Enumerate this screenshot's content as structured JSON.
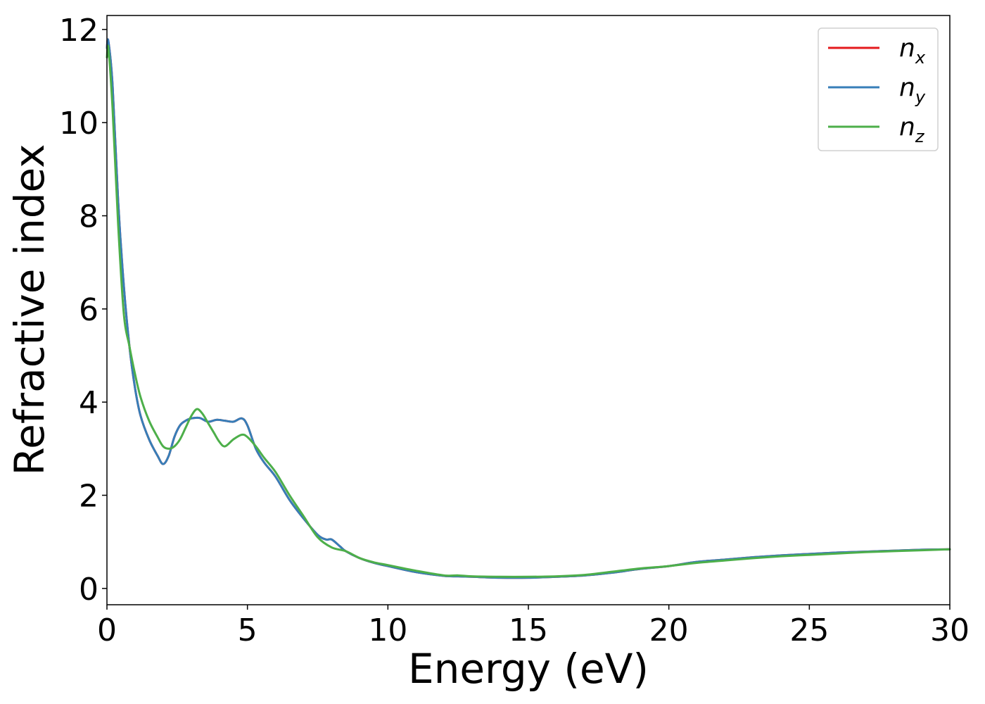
{
  "chart_data": {
    "type": "line",
    "xlabel": "Energy (eV)",
    "ylabel": "Refractive index",
    "xlim": [
      0,
      30
    ],
    "ylim": [
      -0.35,
      12.3
    ],
    "xticks": [
      0,
      5,
      10,
      15,
      20,
      25,
      30
    ],
    "yticks": [
      0,
      2,
      4,
      6,
      8,
      10,
      12
    ],
    "grid": false,
    "legend_position": "top-right",
    "series": [
      {
        "name": "n_x",
        "legend": {
          "base": "n",
          "sub": "x"
        },
        "color": "#e41a1c",
        "x": [
          0,
          0.05,
          0.2,
          0.4,
          0.6,
          0.8,
          1.0,
          1.2,
          1.5,
          1.8,
          2.0,
          2.2,
          2.4,
          2.6,
          2.8,
          3.0,
          3.3,
          3.6,
          3.9,
          4.2,
          4.5,
          4.8,
          5.0,
          5.3,
          5.6,
          6.0,
          6.5,
          7.0,
          7.5,
          7.8,
          8.0,
          8.3,
          8.5,
          9.0,
          9.5,
          10.0,
          11.0,
          12.0,
          12.5,
          13.0,
          14.0,
          15.0,
          16.0,
          17.0,
          18.0,
          19.0,
          20.0,
          21.0,
          22.0,
          23.0,
          24.0,
          25.0,
          26.0,
          27.0,
          28.0,
          29.0,
          30.0
        ],
        "y": [
          11.6,
          11.75,
          10.8,
          8.3,
          6.5,
          5.2,
          4.3,
          3.7,
          3.2,
          2.85,
          2.67,
          2.85,
          3.25,
          3.5,
          3.6,
          3.65,
          3.66,
          3.58,
          3.62,
          3.6,
          3.58,
          3.65,
          3.5,
          3.0,
          2.7,
          2.4,
          1.9,
          1.5,
          1.15,
          1.05,
          1.05,
          0.9,
          0.8,
          0.65,
          0.55,
          0.48,
          0.35,
          0.27,
          0.26,
          0.25,
          0.23,
          0.23,
          0.25,
          0.28,
          0.34,
          0.42,
          0.48,
          0.57,
          0.62,
          0.67,
          0.71,
          0.74,
          0.77,
          0.79,
          0.81,
          0.83,
          0.84
        ]
      },
      {
        "name": "n_y",
        "legend": {
          "base": "n",
          "sub": "y"
        },
        "color": "#377eb8",
        "x": [
          0,
          0.05,
          0.2,
          0.4,
          0.6,
          0.8,
          1.0,
          1.2,
          1.5,
          1.8,
          2.0,
          2.2,
          2.4,
          2.6,
          2.8,
          3.0,
          3.3,
          3.6,
          3.9,
          4.2,
          4.5,
          4.8,
          5.0,
          5.3,
          5.6,
          6.0,
          6.5,
          7.0,
          7.5,
          7.8,
          8.0,
          8.3,
          8.5,
          9.0,
          9.5,
          10.0,
          11.0,
          12.0,
          12.5,
          13.0,
          14.0,
          15.0,
          16.0,
          17.0,
          18.0,
          19.0,
          20.0,
          21.0,
          22.0,
          23.0,
          24.0,
          25.0,
          26.0,
          27.0,
          28.0,
          29.0,
          30.0
        ],
        "y": [
          11.6,
          11.75,
          10.8,
          8.3,
          6.5,
          5.2,
          4.3,
          3.7,
          3.2,
          2.85,
          2.67,
          2.85,
          3.25,
          3.5,
          3.6,
          3.65,
          3.66,
          3.58,
          3.62,
          3.6,
          3.58,
          3.65,
          3.5,
          3.0,
          2.7,
          2.4,
          1.9,
          1.5,
          1.15,
          1.05,
          1.05,
          0.9,
          0.8,
          0.65,
          0.55,
          0.48,
          0.35,
          0.27,
          0.26,
          0.25,
          0.23,
          0.23,
          0.25,
          0.28,
          0.34,
          0.42,
          0.48,
          0.57,
          0.62,
          0.67,
          0.71,
          0.74,
          0.77,
          0.79,
          0.81,
          0.83,
          0.84
        ]
      },
      {
        "name": "n_z",
        "legend": {
          "base": "n",
          "sub": "z"
        },
        "color": "#4daf4a",
        "x": [
          0,
          0.05,
          0.2,
          0.4,
          0.6,
          0.8,
          1.0,
          1.2,
          1.5,
          1.8,
          2.0,
          2.2,
          2.4,
          2.6,
          2.8,
          3.0,
          3.2,
          3.4,
          3.6,
          3.8,
          4.0,
          4.2,
          4.5,
          4.8,
          5.0,
          5.3,
          5.6,
          6.0,
          6.5,
          7.0,
          7.5,
          8.0,
          8.5,
          9.0,
          9.5,
          10.0,
          11.0,
          12.0,
          12.5,
          13.0,
          14.0,
          15.0,
          16.0,
          17.0,
          18.0,
          19.0,
          20.0,
          21.0,
          22.0,
          23.0,
          24.0,
          25.0,
          26.0,
          27.0,
          28.0,
          29.0,
          30.0
        ],
        "y": [
          11.4,
          11.6,
          10.3,
          7.8,
          5.9,
          5.2,
          4.6,
          4.1,
          3.6,
          3.25,
          3.05,
          3.0,
          3.05,
          3.2,
          3.45,
          3.7,
          3.85,
          3.75,
          3.55,
          3.35,
          3.15,
          3.05,
          3.2,
          3.3,
          3.25,
          3.05,
          2.8,
          2.5,
          2.0,
          1.55,
          1.1,
          0.88,
          0.8,
          0.65,
          0.56,
          0.5,
          0.38,
          0.28,
          0.28,
          0.26,
          0.25,
          0.25,
          0.26,
          0.29,
          0.36,
          0.43,
          0.48,
          0.55,
          0.6,
          0.65,
          0.69,
          0.72,
          0.75,
          0.78,
          0.8,
          0.82,
          0.84
        ]
      }
    ]
  }
}
